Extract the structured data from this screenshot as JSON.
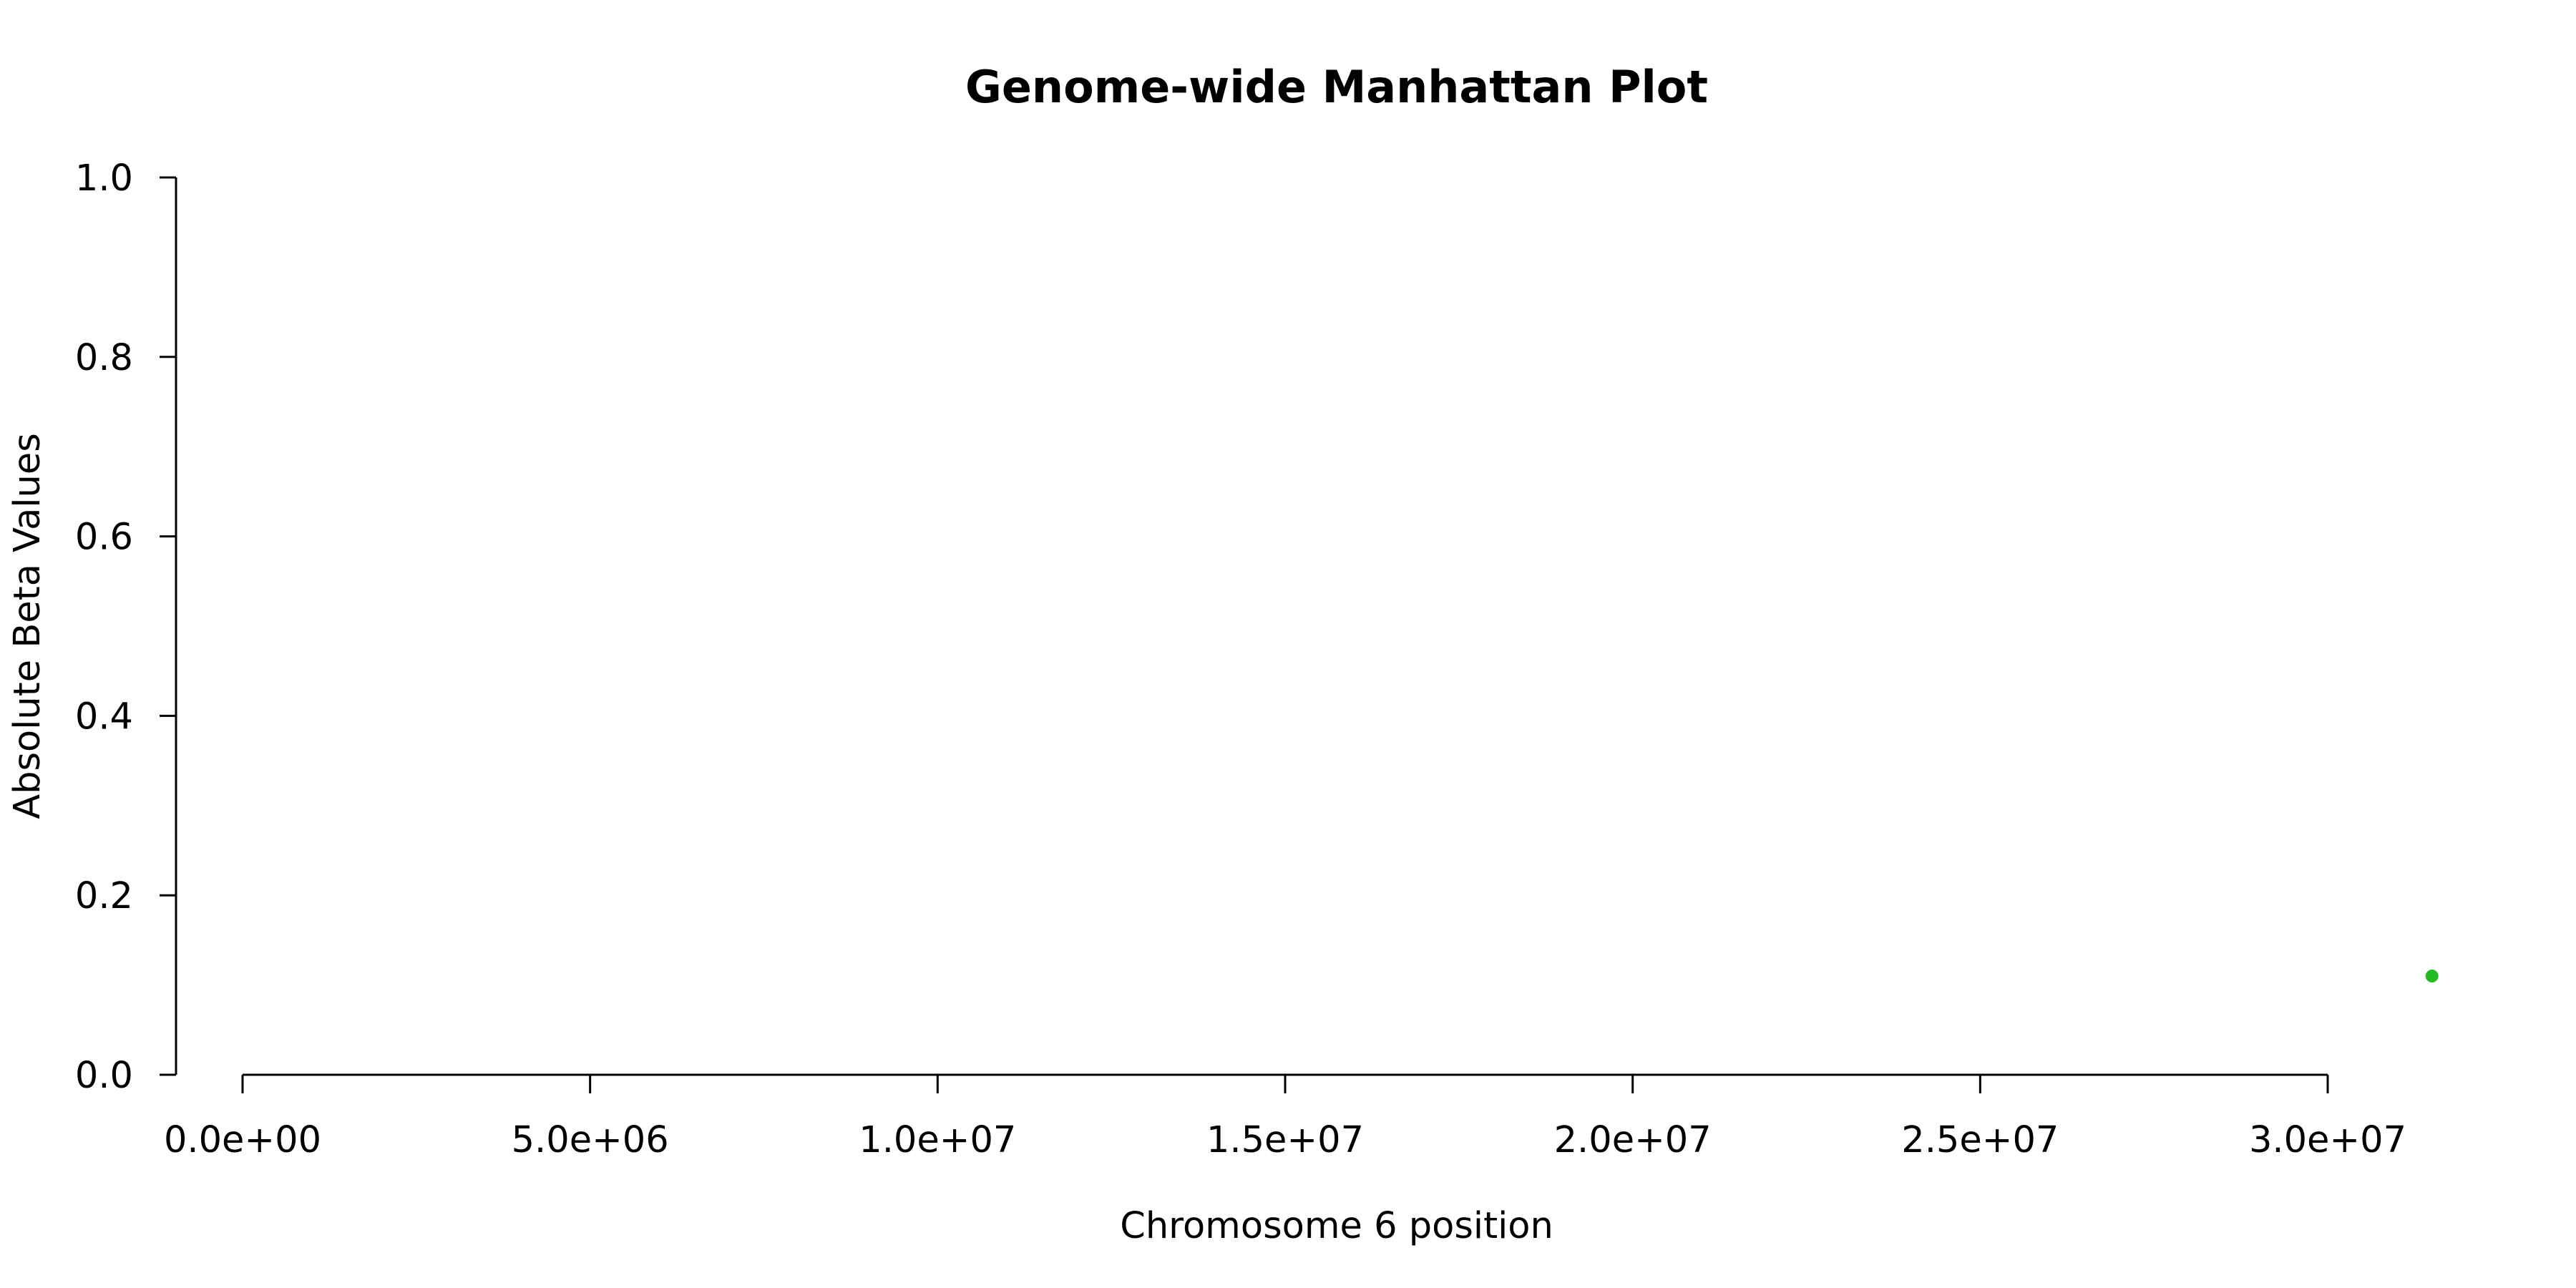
{
  "chart_data": {
    "type": "scatter",
    "title": "Genome-wide Manhattan Plot",
    "xlabel": "Chromosome 6 position",
    "ylabel": "Absolute Beta Values",
    "xlim": [
      0,
      30000000
    ],
    "ylim": [
      0,
      1
    ],
    "x_ticks": [
      0,
      5000000,
      10000000,
      15000000,
      20000000,
      25000000,
      30000000
    ],
    "x_tick_labels": [
      "0.0e+00",
      "5.0e+06",
      "1.0e+07",
      "1.5e+07",
      "2.0e+07",
      "2.5e+07",
      "3.0e+07"
    ],
    "y_ticks": [
      0,
      0.2,
      0.4,
      0.6,
      0.8,
      1.0
    ],
    "y_tick_labels": [
      "0.0",
      "0.2",
      "0.4",
      "0.6",
      "0.8",
      "1.0"
    ],
    "grid": false,
    "series": [
      {
        "color": "#22bb22",
        "points": [
          {
            "x": 31500000,
            "y": 0.11
          }
        ]
      }
    ]
  }
}
